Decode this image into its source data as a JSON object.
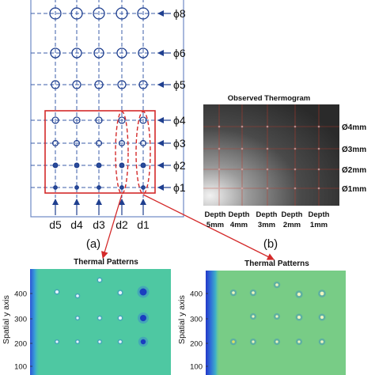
{
  "panel_a": {
    "caption": "(a)",
    "column_labels": [
      "d5",
      "d4",
      "d3",
      "d2",
      "d1"
    ],
    "row_labels": [
      "ϕ8",
      "ϕ6",
      "ϕ5",
      "ϕ4",
      "ϕ3",
      "ϕ2",
      "ϕ1"
    ],
    "colors": {
      "line": "#1f3f8f",
      "dash": "#3b5ca8",
      "highlight": "#d42a2a"
    }
  },
  "panel_b": {
    "title": "Observed Thermogram",
    "caption": "(b)",
    "diameter_labels": [
      "Ø4mm",
      "Ø3mm",
      "Ø2mm",
      "Ø1mm"
    ],
    "depth_labels": [
      {
        "line1": "Depth",
        "line2": "5mm"
      },
      {
        "line1": "Depth",
        "line2": "4mm"
      },
      {
        "line1": "Depth",
        "line2": "3mm"
      },
      {
        "line1": "Depth",
        "line2": "2mm"
      },
      {
        "line1": "Depth",
        "line2": "1mm"
      }
    ],
    "colors": {
      "grid": "#c0392b"
    }
  },
  "panel_c": {
    "title": "Thermal Patterns",
    "ylabel": "Spatial y axis",
    "yticks": [
      "400",
      "300",
      "200",
      "100"
    ]
  },
  "panel_d": {
    "title": "Thermal Patterns",
    "ylabel": "Spatial y axis",
    "yticks": [
      "400",
      "300",
      "200",
      "100"
    ]
  }
}
